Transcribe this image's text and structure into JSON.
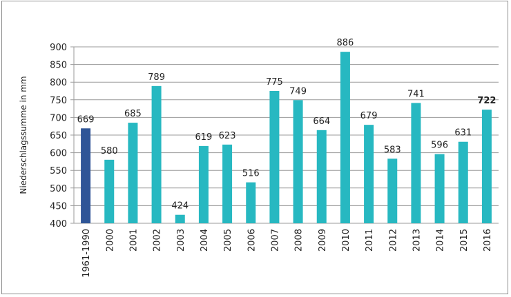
{
  "chart_data": {
    "type": "bar",
    "title": "",
    "xlabel": "",
    "ylabel": "Niederschlagssumme in mm",
    "ylim": [
      400,
      900
    ],
    "yticks": [
      400,
      450,
      500,
      550,
      600,
      650,
      700,
      750,
      800,
      850,
      900
    ],
    "grid": true,
    "categories": [
      "1961-1990",
      "2000",
      "2001",
      "2002",
      "2003",
      "2004",
      "2005",
      "2006",
      "2007",
      "2008",
      "2009",
      "2010",
      "2011",
      "2012",
      "2013",
      "2014",
      "2015",
      "2016"
    ],
    "values": [
      669,
      580,
      685,
      789,
      424,
      619,
      623,
      516,
      775,
      749,
      664,
      886,
      679,
      583,
      741,
      596,
      631,
      722
    ],
    "highlight_bold_label": "2016",
    "colors": {
      "reference": "#2F5597",
      "years": "#27B8C1",
      "grid": "#9a9a9a"
    }
  }
}
